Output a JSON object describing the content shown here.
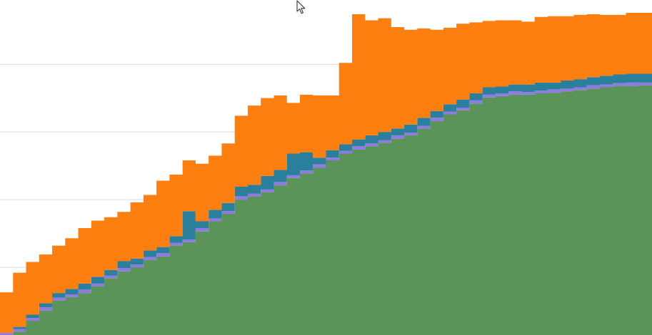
{
  "chart_data": {
    "type": "area",
    "stacked": true,
    "interpolation": "step",
    "grid": true,
    "legend": "none",
    "title": "",
    "xlabel": "",
    "ylabel": "",
    "xlim": [
      0,
      100
    ],
    "ylim": [
      0,
      4.95
    ],
    "ygrid": [
      1,
      2,
      3,
      4
    ],
    "x": [
      0,
      2,
      4,
      6,
      8,
      10,
      12,
      14,
      16,
      18,
      20,
      22,
      24,
      26,
      28,
      30,
      32,
      34,
      36,
      38,
      40,
      42,
      44,
      46,
      48,
      50,
      52,
      54,
      56,
      58,
      60,
      62,
      64,
      66,
      68,
      70,
      72,
      74,
      76,
      78,
      80,
      82,
      84,
      86,
      88,
      90,
      92,
      94,
      96,
      98,
      100
    ],
    "series": [
      {
        "color": "#5b9459",
        "values": [
          0.0,
          0.05,
          0.21,
          0.36,
          0.51,
          0.56,
          0.62,
          0.72,
          0.84,
          0.94,
          1.0,
          1.11,
          1.16,
          1.32,
          1.37,
          1.53,
          1.68,
          1.79,
          2.0,
          2.05,
          2.11,
          2.21,
          2.32,
          2.39,
          2.47,
          2.58,
          2.68,
          2.74,
          2.79,
          2.84,
          2.9,
          2.95,
          3.05,
          3.16,
          3.26,
          3.32,
          3.42,
          3.51,
          3.53,
          3.55,
          3.55,
          3.57,
          3.58,
          3.6,
          3.62,
          3.64,
          3.66,
          3.68,
          3.68,
          3.69,
          3.7
        ]
      },
      {
        "color": "#8e7ae0",
        "values": [
          0.03,
          0.04,
          0.04,
          0.05,
          0.04,
          0.04,
          0.05,
          0.04,
          0.04,
          0.05,
          0.04,
          0.04,
          0.05,
          0.04,
          0.04,
          0.05,
          0.04,
          0.04,
          0.05,
          0.04,
          0.04,
          0.05,
          0.04,
          0.04,
          0.05,
          0.04,
          0.04,
          0.05,
          0.04,
          0.04,
          0.05,
          0.04,
          0.04,
          0.05,
          0.04,
          0.04,
          0.05,
          0.04,
          0.04,
          0.05,
          0.04,
          0.04,
          0.05,
          0.04,
          0.04,
          0.05,
          0.04,
          0.04,
          0.05,
          0.04,
          0.04
        ]
      },
      {
        "color": "#2a7f9d",
        "values": [
          0.0,
          0.03,
          0.05,
          0.06,
          0.07,
          0.08,
          0.09,
          0.1,
          0.08,
          0.1,
          0.09,
          0.1,
          0.09,
          0.1,
          0.42,
          0.1,
          0.13,
          0.12,
          0.14,
          0.13,
          0.2,
          0.18,
          0.32,
          0.27,
          0.1,
          0.11,
          0.1,
          0.1,
          0.12,
          0.12,
          0.1,
          0.12,
          0.12,
          0.1,
          0.11,
          0.12,
          0.1,
          0.11,
          0.1,
          0.1,
          0.11,
          0.12,
          0.1,
          0.12,
          0.12,
          0.12,
          0.13,
          0.13,
          0.13,
          0.13,
          0.13
        ]
      },
      {
        "color": "#fc7f0f",
        "values": [
          0.6,
          0.8,
          0.78,
          0.72,
          0.7,
          0.75,
          0.82,
          0.83,
          0.78,
          0.73,
          0.83,
          0.82,
          0.98,
          0.91,
          0.75,
          0.85,
          0.8,
          0.88,
          1.05,
          1.17,
          1.15,
          1.1,
          0.75,
          0.85,
          0.92,
          0.81,
          1.2,
          1.85,
          1.7,
          1.68,
          1.5,
          1.4,
          1.32,
          1.2,
          1.13,
          1.12,
          1.05,
          0.98,
          0.98,
          0.95,
          0.93,
          0.97,
          0.98,
          0.95,
          0.95,
          0.93,
          0.9,
          0.88,
          0.9,
          0.9,
          0.89
        ]
      }
    ]
  }
}
